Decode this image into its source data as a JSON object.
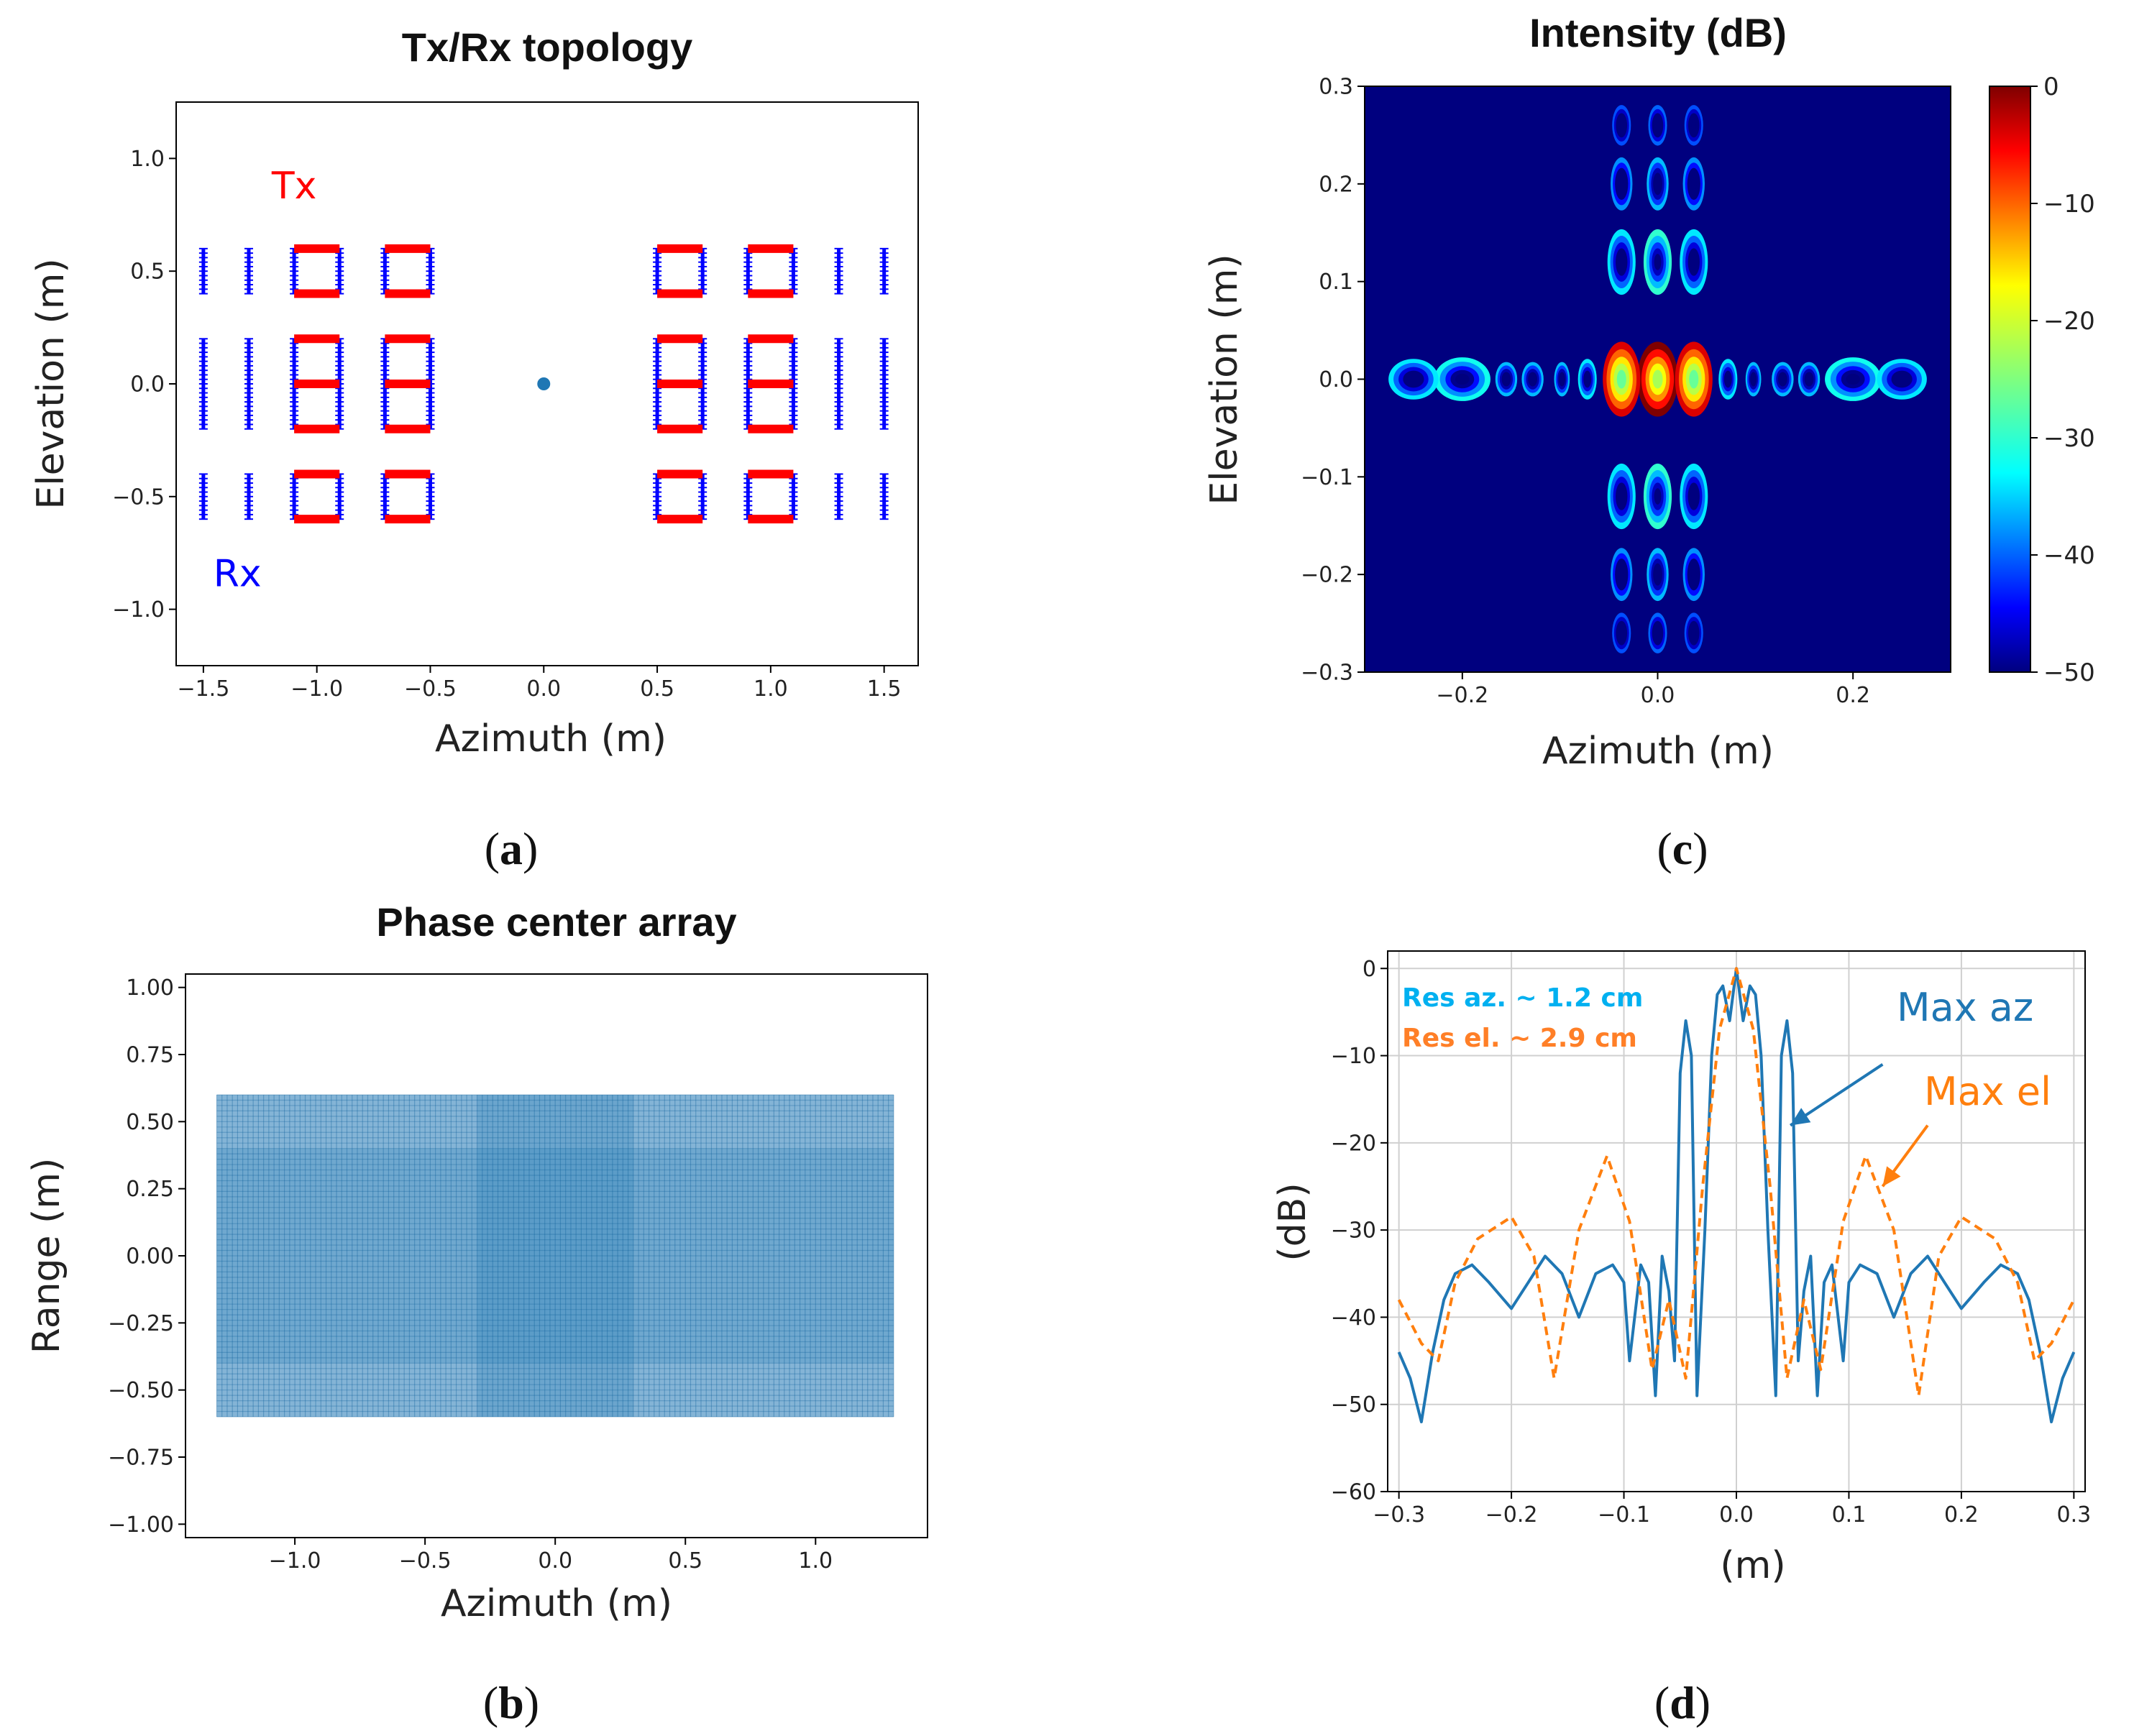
{
  "figure": {
    "subcaptions": {
      "a": "a",
      "b": "b",
      "c": "c",
      "d": "d"
    }
  },
  "chart_data": [
    {
      "id": "a",
      "type": "scatter",
      "title": "Tx/Rx topology",
      "xlabel": "Azimuth (m)",
      "ylabel": "Elevation (m)",
      "xlim": [
        -1.62,
        1.65
      ],
      "ylim": [
        -1.25,
        1.25
      ],
      "xticks": [
        -1.5,
        -1.0,
        -0.5,
        0.0,
        0.5,
        1.0,
        1.5
      ],
      "xtick_labels": [
        "−1.5",
        "−1.0",
        "−0.5",
        "0.0",
        "0.5",
        "1.0",
        "1.5"
      ],
      "yticks": [
        -1.0,
        -0.5,
        0.0,
        0.5,
        1.0
      ],
      "ytick_labels": [
        "−1.0",
        "−0.5",
        "0.0",
        "0.5",
        "1.0"
      ],
      "annotations": [
        {
          "text": "Tx",
          "x": -1.1,
          "y": 0.88,
          "color": "#ff0000"
        },
        {
          "text": "Rx",
          "x": -1.35,
          "y": -0.84,
          "color": "#0000ff"
        }
      ],
      "series": [
        {
          "name": "Rx",
          "color": "#0000ff",
          "vertical_lines": [
            {
              "x": -1.5,
              "y0": -0.6,
              "y1": -0.4
            },
            {
              "x": -1.5,
              "y0": -0.2,
              "y1": 0.2
            },
            {
              "x": -1.5,
              "y0": 0.4,
              "y1": 0.6
            },
            {
              "x": -1.3,
              "y0": -0.6,
              "y1": -0.4
            },
            {
              "x": -1.3,
              "y0": -0.2,
              "y1": 0.2
            },
            {
              "x": -1.3,
              "y0": 0.4,
              "y1": 0.6
            },
            {
              "x": -1.1,
              "y0": -0.6,
              "y1": -0.4
            },
            {
              "x": -1.1,
              "y0": -0.2,
              "y1": 0.2
            },
            {
              "x": -1.1,
              "y0": 0.4,
              "y1": 0.6
            },
            {
              "x": -0.9,
              "y0": -0.6,
              "y1": -0.4
            },
            {
              "x": -0.9,
              "y0": -0.2,
              "y1": 0.2
            },
            {
              "x": -0.9,
              "y0": 0.4,
              "y1": 0.6
            },
            {
              "x": -0.7,
              "y0": -0.6,
              "y1": -0.4
            },
            {
              "x": -0.7,
              "y0": -0.2,
              "y1": 0.2
            },
            {
              "x": -0.7,
              "y0": 0.4,
              "y1": 0.6
            },
            {
              "x": -0.5,
              "y0": -0.6,
              "y1": -0.4
            },
            {
              "x": -0.5,
              "y0": -0.2,
              "y1": 0.2
            },
            {
              "x": -0.5,
              "y0": 0.4,
              "y1": 0.6
            },
            {
              "x": 0.5,
              "y0": -0.6,
              "y1": -0.4
            },
            {
              "x": 0.5,
              "y0": -0.2,
              "y1": 0.2
            },
            {
              "x": 0.5,
              "y0": 0.4,
              "y1": 0.6
            },
            {
              "x": 0.7,
              "y0": -0.6,
              "y1": -0.4
            },
            {
              "x": 0.7,
              "y0": -0.2,
              "y1": 0.2
            },
            {
              "x": 0.7,
              "y0": 0.4,
              "y1": 0.6
            },
            {
              "x": 0.9,
              "y0": -0.6,
              "y1": -0.4
            },
            {
              "x": 0.9,
              "y0": -0.2,
              "y1": 0.2
            },
            {
              "x": 0.9,
              "y0": 0.4,
              "y1": 0.6
            },
            {
              "x": 1.1,
              "y0": -0.6,
              "y1": -0.4
            },
            {
              "x": 1.1,
              "y0": -0.2,
              "y1": 0.2
            },
            {
              "x": 1.1,
              "y0": 0.4,
              "y1": 0.6
            },
            {
              "x": 1.3,
              "y0": -0.6,
              "y1": -0.4
            },
            {
              "x": 1.3,
              "y0": -0.2,
              "y1": 0.2
            },
            {
              "x": 1.3,
              "y0": 0.4,
              "y1": 0.6
            },
            {
              "x": 1.5,
              "y0": -0.6,
              "y1": -0.4
            },
            {
              "x": 1.5,
              "y0": -0.2,
              "y1": 0.2
            },
            {
              "x": 1.5,
              "y0": 0.4,
              "y1": 0.6
            }
          ]
        },
        {
          "name": "Tx",
          "color": "#ff0000",
          "horizontal_lines": [
            {
              "y": 0.6,
              "x0": -1.1,
              "x1": -0.9
            },
            {
              "y": 0.4,
              "x0": -1.1,
              "x1": -0.9
            },
            {
              "y": 0.2,
              "x0": -1.1,
              "x1": -0.9
            },
            {
              "y": 0.0,
              "x0": -1.1,
              "x1": -0.9
            },
            {
              "y": -0.2,
              "x0": -1.1,
              "x1": -0.9
            },
            {
              "y": -0.4,
              "x0": -1.1,
              "x1": -0.9
            },
            {
              "y": -0.6,
              "x0": -1.1,
              "x1": -0.9
            },
            {
              "y": 0.6,
              "x0": -0.7,
              "x1": -0.5
            },
            {
              "y": 0.4,
              "x0": -0.7,
              "x1": -0.5
            },
            {
              "y": 0.2,
              "x0": -0.7,
              "x1": -0.5
            },
            {
              "y": 0.0,
              "x0": -0.7,
              "x1": -0.5
            },
            {
              "y": -0.2,
              "x0": -0.7,
              "x1": -0.5
            },
            {
              "y": -0.4,
              "x0": -0.7,
              "x1": -0.5
            },
            {
              "y": -0.6,
              "x0": -0.7,
              "x1": -0.5
            },
            {
              "y": 0.6,
              "x0": 0.5,
              "x1": 0.7
            },
            {
              "y": 0.4,
              "x0": 0.5,
              "x1": 0.7
            },
            {
              "y": 0.2,
              "x0": 0.5,
              "x1": 0.7
            },
            {
              "y": 0.0,
              "x0": 0.5,
              "x1": 0.7
            },
            {
              "y": -0.2,
              "x0": 0.5,
              "x1": 0.7
            },
            {
              "y": -0.4,
              "x0": 0.5,
              "x1": 0.7
            },
            {
              "y": -0.6,
              "x0": 0.5,
              "x1": 0.7
            },
            {
              "y": 0.6,
              "x0": 0.9,
              "x1": 1.1
            },
            {
              "y": 0.4,
              "x0": 0.9,
              "x1": 1.1
            },
            {
              "y": 0.2,
              "x0": 0.9,
              "x1": 1.1
            },
            {
              "y": 0.0,
              "x0": 0.9,
              "x1": 1.1
            },
            {
              "y": -0.2,
              "x0": 0.9,
              "x1": 1.1
            },
            {
              "y": -0.4,
              "x0": 0.9,
              "x1": 1.1
            },
            {
              "y": -0.6,
              "x0": 0.9,
              "x1": 1.1
            }
          ]
        },
        {
          "name": "center",
          "color": "#1f77b4",
          "points": [
            {
              "x": 0.0,
              "y": 0.0
            }
          ]
        }
      ]
    },
    {
      "id": "b",
      "type": "scatter",
      "title": "Phase center array",
      "xlabel": "Azimuth (m)",
      "ylabel": "Range (m)",
      "xlim": [
        -1.42,
        1.43
      ],
      "ylim": [
        -1.05,
        1.05
      ],
      "xticks": [
        -1.0,
        -0.5,
        0.0,
        0.5,
        1.0
      ],
      "xtick_labels": [
        "−1.0",
        "−0.5",
        "0.0",
        "0.5",
        "1.0"
      ],
      "yticks": [
        -1.0,
        -0.75,
        -0.5,
        -0.25,
        0.0,
        0.25,
        0.5,
        0.75,
        1.0
      ],
      "ytick_labels": [
        "−1.00",
        "−0.75",
        "−0.50",
        "−0.25",
        "0.00",
        "0.25",
        "0.50",
        "0.75",
        "1.00"
      ],
      "color": "#1f77b4",
      "extent": {
        "x": [
          -1.3,
          1.3
        ],
        "y": [
          -0.6,
          0.6
        ]
      }
    },
    {
      "id": "c",
      "type": "heatmap",
      "title": "Intensity (dB)",
      "xlabel": "Azimuth (m)",
      "ylabel": "Elevation (m)",
      "xlim": [
        -0.3,
        0.3
      ],
      "ylim": [
        -0.3,
        0.3
      ],
      "xticks": [
        -0.2,
        0.0,
        0.2
      ],
      "xtick_labels": [
        "−0.2",
        "0.0",
        "0.2"
      ],
      "yticks": [
        -0.3,
        -0.2,
        -0.1,
        0.0,
        0.1,
        0.2,
        0.3
      ],
      "ytick_labels": [
        "−0.3",
        "−0.2",
        "−0.1",
        "0.0",
        "0.1",
        "0.2",
        "0.3"
      ],
      "colorbar": {
        "range": [
          -50,
          0
        ],
        "ticks": [
          0,
          -10,
          -20,
          -30,
          -40,
          -50
        ],
        "tick_labels": [
          "0",
          "−10",
          "−20",
          "−30",
          "−40",
          "−50"
        ]
      },
      "blobs": [
        {
          "x": 0.0,
          "y": 0.0,
          "sx": 0.013,
          "sy": 0.024,
          "db": 0
        },
        {
          "x": -0.037,
          "y": 0.0,
          "sx": 0.012,
          "sy": 0.024,
          "db": -4
        },
        {
          "x": 0.037,
          "y": 0.0,
          "sx": 0.012,
          "sy": 0.024,
          "db": -4
        },
        {
          "x": -0.072,
          "y": 0.0,
          "sx": 0.006,
          "sy": 0.013,
          "db": -34
        },
        {
          "x": 0.072,
          "y": 0.0,
          "sx": 0.006,
          "sy": 0.013,
          "db": -34
        },
        {
          "x": -0.098,
          "y": 0.0,
          "sx": 0.005,
          "sy": 0.011,
          "db": -36
        },
        {
          "x": 0.098,
          "y": 0.0,
          "sx": 0.005,
          "sy": 0.011,
          "db": -36
        },
        {
          "x": -0.128,
          "y": 0.0,
          "sx": 0.007,
          "sy": 0.011,
          "db": -36
        },
        {
          "x": 0.128,
          "y": 0.0,
          "sx": 0.007,
          "sy": 0.011,
          "db": -36
        },
        {
          "x": -0.155,
          "y": 0.0,
          "sx": 0.007,
          "sy": 0.011,
          "db": -36
        },
        {
          "x": 0.155,
          "y": 0.0,
          "sx": 0.007,
          "sy": 0.011,
          "db": -36
        },
        {
          "x": -0.2,
          "y": 0.0,
          "sx": 0.018,
          "sy": 0.014,
          "db": -32
        },
        {
          "x": 0.2,
          "y": 0.0,
          "sx": 0.018,
          "sy": 0.014,
          "db": -32
        },
        {
          "x": -0.25,
          "y": 0.0,
          "sx": 0.016,
          "sy": 0.013,
          "db": -34
        },
        {
          "x": 0.25,
          "y": 0.0,
          "sx": 0.016,
          "sy": 0.013,
          "db": -34
        },
        {
          "x": 0.0,
          "y": 0.12,
          "sx": 0.009,
          "sy": 0.021,
          "db": -30
        },
        {
          "x": -0.037,
          "y": 0.12,
          "sx": 0.009,
          "sy": 0.021,
          "db": -34
        },
        {
          "x": 0.037,
          "y": 0.12,
          "sx": 0.009,
          "sy": 0.021,
          "db": -34
        },
        {
          "x": 0.0,
          "y": -0.12,
          "sx": 0.009,
          "sy": 0.021,
          "db": -30
        },
        {
          "x": -0.037,
          "y": -0.12,
          "sx": 0.009,
          "sy": 0.021,
          "db": -34
        },
        {
          "x": 0.037,
          "y": -0.12,
          "sx": 0.009,
          "sy": 0.021,
          "db": -34
        },
        {
          "x": 0.0,
          "y": 0.2,
          "sx": 0.007,
          "sy": 0.017,
          "db": -36
        },
        {
          "x": -0.037,
          "y": 0.2,
          "sx": 0.007,
          "sy": 0.017,
          "db": -38
        },
        {
          "x": 0.037,
          "y": 0.2,
          "sx": 0.007,
          "sy": 0.017,
          "db": -38
        },
        {
          "x": 0.0,
          "y": -0.2,
          "sx": 0.007,
          "sy": 0.017,
          "db": -36
        },
        {
          "x": -0.037,
          "y": -0.2,
          "sx": 0.007,
          "sy": 0.017,
          "db": -38
        },
        {
          "x": 0.037,
          "y": -0.2,
          "sx": 0.007,
          "sy": 0.017,
          "db": -38
        },
        {
          "x": 0.0,
          "y": 0.26,
          "sx": 0.006,
          "sy": 0.013,
          "db": -40
        },
        {
          "x": -0.037,
          "y": 0.26,
          "sx": 0.006,
          "sy": 0.013,
          "db": -41
        },
        {
          "x": 0.037,
          "y": 0.26,
          "sx": 0.006,
          "sy": 0.013,
          "db": -41
        },
        {
          "x": 0.0,
          "y": -0.26,
          "sx": 0.006,
          "sy": 0.013,
          "db": -40
        },
        {
          "x": -0.037,
          "y": -0.26,
          "sx": 0.006,
          "sy": 0.013,
          "db": -41
        },
        {
          "x": 0.037,
          "y": -0.26,
          "sx": 0.006,
          "sy": 0.013,
          "db": -41
        }
      ]
    },
    {
      "id": "d",
      "type": "line",
      "title": "",
      "xlabel": "(m)",
      "ylabel": "(dB)",
      "xlim": [
        -0.31,
        0.31
      ],
      "ylim": [
        -60,
        2
      ],
      "grid": true,
      "xticks": [
        -0.3,
        -0.2,
        -0.1,
        0.0,
        0.1,
        0.2,
        0.3
      ],
      "xtick_labels": [
        "−0.3",
        "−0.2",
        "−0.1",
        "0.0",
        "0.1",
        "0.2",
        "0.3"
      ],
      "yticks": [
        0,
        -10,
        -20,
        -30,
        -40,
        -50,
        -60
      ],
      "ytick_labels": [
        "0",
        "−10",
        "−20",
        "−30",
        "−40",
        "−50",
        "−60"
      ],
      "annotations": [
        {
          "text": "Res az. ~ 1.2 cm",
          "color": "#00b0f0"
        },
        {
          "text": "Res el. ~ 2.9 cm",
          "color": "#ff7f27"
        },
        {
          "text": "Max az",
          "color": "#1f77b4",
          "arrow_from": [
            0.13,
            -11
          ],
          "arrow_to": [
            0.048,
            -18
          ]
        },
        {
          "text": "Max el",
          "color": "#ff7f0e",
          "arrow_from": [
            0.17,
            -18
          ],
          "arrow_to": [
            0.13,
            -25
          ]
        }
      ],
      "series": [
        {
          "name": "Max az",
          "color": "#1f77b4",
          "style": "solid",
          "x": [
            -0.3,
            -0.29,
            -0.28,
            -0.27,
            -0.26,
            -0.25,
            -0.235,
            -0.22,
            -0.2,
            -0.185,
            -0.17,
            -0.155,
            -0.14,
            -0.125,
            -0.11,
            -0.1,
            -0.095,
            -0.085,
            -0.078,
            -0.072,
            -0.066,
            -0.06,
            -0.055,
            -0.05,
            -0.045,
            -0.04,
            -0.035,
            -0.028,
            -0.022,
            -0.017,
            -0.012,
            -0.006,
            0.0,
            0.006,
            0.012,
            0.017,
            0.022,
            0.028,
            0.035,
            0.04,
            0.045,
            0.05,
            0.055,
            0.06,
            0.066,
            0.072,
            0.078,
            0.085,
            0.095,
            0.1,
            0.11,
            0.125,
            0.14,
            0.155,
            0.17,
            0.185,
            0.2,
            0.22,
            0.235,
            0.25,
            0.26,
            0.27,
            0.28,
            0.29,
            0.3
          ],
          "y": [
            -44,
            -47,
            -52,
            -44,
            -38,
            -35,
            -34,
            -36,
            -39,
            -36,
            -33,
            -35,
            -40,
            -35,
            -34,
            -36,
            -45,
            -34,
            -36,
            -49,
            -33,
            -37,
            -45,
            -12,
            -6,
            -10,
            -49,
            -30,
            -10,
            -3,
            -2,
            -6,
            0,
            -6,
            -2,
            -3,
            -10,
            -30,
            -49,
            -10,
            -6,
            -12,
            -45,
            -37,
            -33,
            -49,
            -36,
            -34,
            -45,
            -36,
            -34,
            -35,
            -40,
            -35,
            -33,
            -36,
            -39,
            -36,
            -34,
            -35,
            -38,
            -44,
            -52,
            -47,
            -44
          ]
        },
        {
          "name": "Max el",
          "color": "#ff7f0e",
          "style": "dashed",
          "x": [
            -0.3,
            -0.28,
            -0.265,
            -0.25,
            -0.23,
            -0.2,
            -0.18,
            -0.162,
            -0.14,
            -0.115,
            -0.095,
            -0.075,
            -0.06,
            -0.045,
            -0.03,
            -0.015,
            0.0,
            0.015,
            0.03,
            0.045,
            0.06,
            0.075,
            0.095,
            0.115,
            0.14,
            0.162,
            0.18,
            0.2,
            0.23,
            0.25,
            0.265,
            0.28,
            0.3
          ],
          "y": [
            -38,
            -43,
            -45,
            -36,
            -31,
            -28.5,
            -33,
            -47,
            -30,
            -21.5,
            -29,
            -46,
            -38,
            -47,
            -25,
            -7,
            0,
            -7,
            -25,
            -47,
            -38,
            -46,
            -29,
            -21.5,
            -30,
            -49,
            -33,
            -28.5,
            -31,
            -36,
            -45,
            -43,
            -38
          ]
        }
      ]
    }
  ]
}
